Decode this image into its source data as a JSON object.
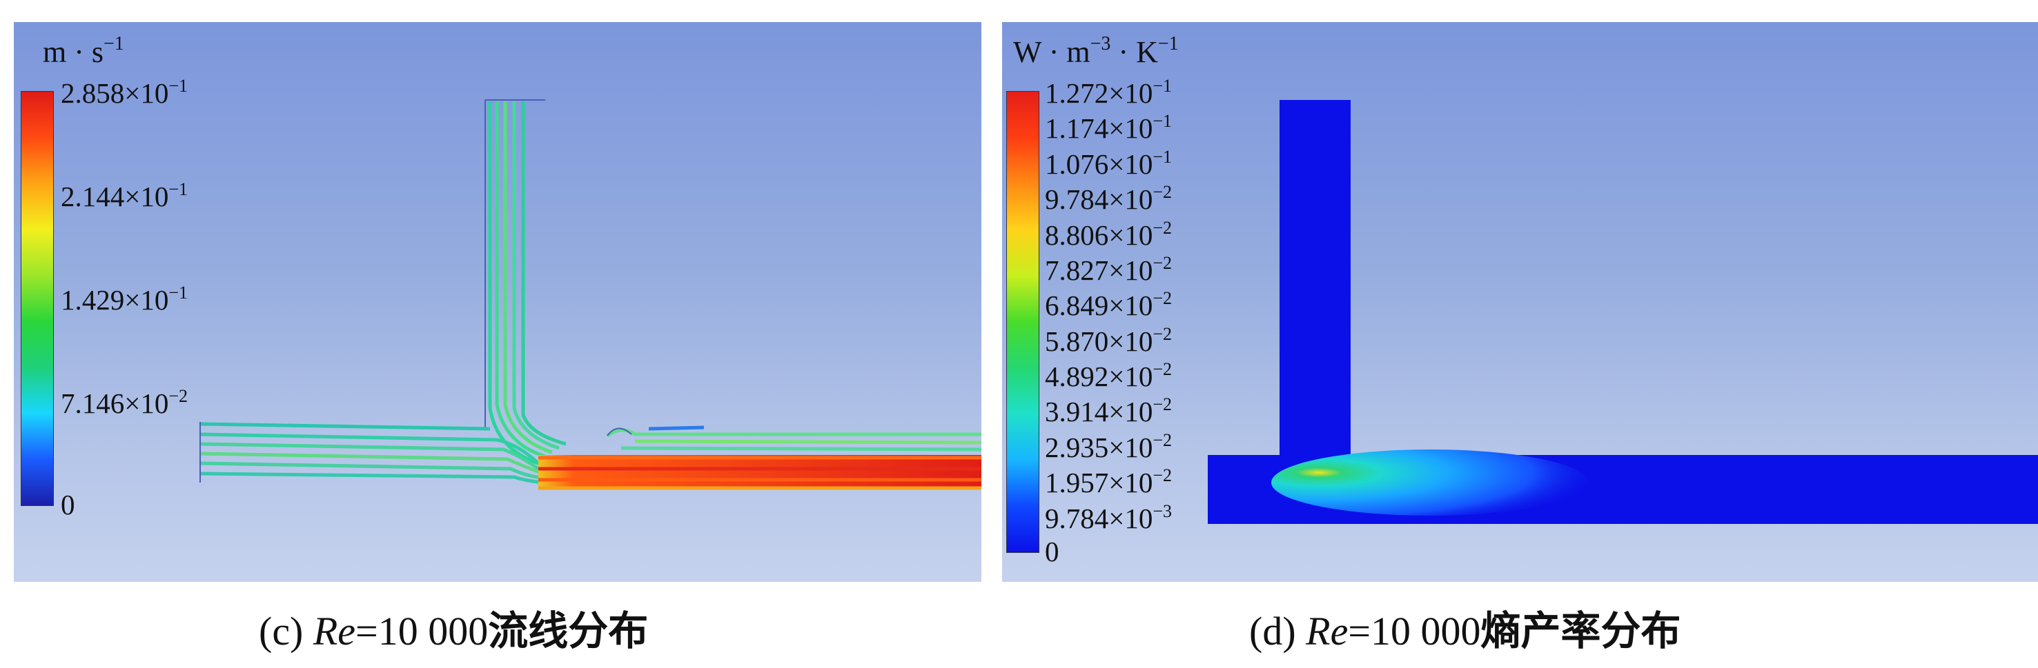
{
  "panel_c": {
    "unit": {
      "base": "m · s",
      "exp": "−1"
    },
    "legend": {
      "colors": [
        "#1a1fa8",
        "#1b5cff",
        "#19d6ff",
        "#1fd07a",
        "#2ad63a",
        "#9ce62a",
        "#f3ef1e",
        "#ffa514",
        "#ff4a12",
        "#e01b17"
      ],
      "ticks": [
        {
          "mant": "2.858×10",
          "exp": "−1",
          "value": 0.2858
        },
        {
          "mant": "2.144×10",
          "exp": "−1",
          "value": 0.2144
        },
        {
          "mant": "1.429×10",
          "exp": "−1",
          "value": 0.1429
        },
        {
          "mant": "7.146×10",
          "exp": "−2",
          "value": 0.07146
        },
        {
          "mant": "0",
          "exp": "",
          "value": 0
        }
      ]
    },
    "caption": {
      "prefix": "(c) ",
      "re": "Re",
      "value": "=10 000",
      "title": "流线分布"
    }
  },
  "panel_d": {
    "unit": {
      "w": "W · m",
      "exp1": "−3",
      "k": " · K",
      "exp2": "−1"
    },
    "legend": {
      "colors": [
        "#0b10e8",
        "#0f48ff",
        "#17b6ff",
        "#1fe0c9",
        "#25d770",
        "#49dc2c",
        "#c8ef1e",
        "#ffd31a",
        "#ff8a14",
        "#ff3d12",
        "#e51f18"
      ],
      "ticks": [
        {
          "mant": "1.272×10",
          "exp": "−1"
        },
        {
          "mant": "1.174×10",
          "exp": "−1"
        },
        {
          "mant": "1.076×10",
          "exp": "−1"
        },
        {
          "mant": "9.784×10",
          "exp": "−2"
        },
        {
          "mant": "8.806×10",
          "exp": "−2"
        },
        {
          "mant": "7.827×10",
          "exp": "−2"
        },
        {
          "mant": "6.849×10",
          "exp": "−2"
        },
        {
          "mant": "5.870×10",
          "exp": "−2"
        },
        {
          "mant": "4.892×10",
          "exp": "−2"
        },
        {
          "mant": "3.914×10",
          "exp": "−2"
        },
        {
          "mant": "2.935×10",
          "exp": "−2"
        },
        {
          "mant": "1.957×10",
          "exp": "−2"
        },
        {
          "mant": "9.784×10",
          "exp": "−3"
        },
        {
          "mant": "0",
          "exp": ""
        }
      ]
    },
    "caption": {
      "prefix": "(d) ",
      "re": "Re",
      "value": "=10 000",
      "title": "熵产率分布"
    }
  }
}
